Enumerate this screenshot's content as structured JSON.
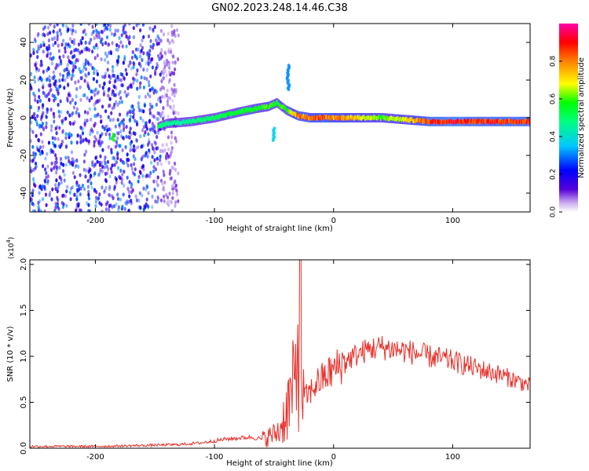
{
  "title": "GN02.2023.248.14.46.C38",
  "chart_data": [
    {
      "type": "heatmap",
      "xlabel": "Height of straight line (km)",
      "ylabel": "Frequency (Hz)",
      "xlim": [
        -255,
        165
      ],
      "ylim": [
        -50,
        50
      ],
      "xticks": [
        -200,
        -100,
        0,
        100
      ],
      "xtick_labels": [
        "-200",
        "-100",
        "0",
        "100"
      ],
      "yticks": [
        -40,
        -20,
        0,
        20,
        40
      ],
      "ytick_labels": [
        "-40",
        "-20",
        "0",
        "20",
        "40"
      ],
      "colorbar": {
        "label": "Normalized spectral amplitude",
        "range": [
          0,
          1
        ],
        "ticks": [
          0.0,
          0.2,
          0.4,
          0.6,
          0.8
        ],
        "tick_labels": [
          "0.0",
          "0.2",
          "0.4",
          "0.6",
          "0.8"
        ],
        "colormap": [
          "#ffffff",
          "#5500d8",
          "#0000ff",
          "#00c8ff",
          "#00ff80",
          "#00ff00",
          "#ffff00",
          "#ff8000",
          "#ff0000",
          "#ff00aa"
        ]
      },
      "signal_track": {
        "x": [
          -148,
          -140,
          -120,
          -100,
          -80,
          -65,
          -55,
          -48,
          -40,
          -30,
          -20,
          -10,
          0,
          20,
          40,
          60,
          80,
          100,
          120,
          140,
          165
        ],
        "freq": [
          -5,
          -3,
          -2,
          0,
          3,
          5,
          6,
          8,
          4,
          1,
          0,
          0,
          0,
          0,
          0,
          -1,
          -2,
          -2,
          -2,
          -2,
          -2
        ],
        "amplitude": [
          0.5,
          0.45,
          0.45,
          0.5,
          0.55,
          0.55,
          0.6,
          0.55,
          0.6,
          0.85,
          0.8,
          0.85,
          0.8,
          0.75,
          0.6,
          0.7,
          0.9,
          0.95,
          0.9,
          0.9,
          0.9
        ]
      },
      "noise_region": {
        "x_range": [
          -255,
          -145
        ],
        "amplitude": 0.25
      },
      "side_features": [
        {
          "x": -38,
          "freq_range": [
            15,
            28
          ],
          "amplitude": 0.3
        },
        {
          "x": -50,
          "freq_range": [
            -12,
            -5
          ],
          "amplitude": 0.35
        },
        {
          "x": -185,
          "freq_range": [
            -12,
            -8
          ],
          "amplitude": 0.55
        }
      ]
    },
    {
      "type": "line",
      "xlabel": "Height of straight line (km)",
      "ylabel": "SNR (10 * v/v)",
      "y_multiplier": "(x10",
      "y_multiplier_exp": "4",
      "y_multiplier_close": ")",
      "xlim": [
        -255,
        165
      ],
      "ylim": [
        0,
        2.05
      ],
      "xticks": [
        -200,
        -100,
        0,
        100
      ],
      "xtick_labels": [
        "-200",
        "-100",
        "0",
        "100"
      ],
      "yticks": [
        0.0,
        0.5,
        1.0,
        1.5,
        2.0
      ],
      "ytick_labels": [
        "0.0",
        "0.5",
        "1.0",
        "1.5",
        "2.0"
      ],
      "color": "#e8302a",
      "x": [
        -255,
        -200,
        -160,
        -130,
        -110,
        -90,
        -70,
        -60,
        -50,
        -45,
        -40,
        -36,
        -32,
        -30,
        -28,
        -26,
        -24,
        -20,
        -15,
        -10,
        -5,
        0,
        5,
        10,
        20,
        30,
        40,
        60,
        80,
        100,
        120,
        140,
        165
      ],
      "values": [
        0.02,
        0.02,
        0.03,
        0.04,
        0.06,
        0.1,
        0.12,
        0.1,
        0.15,
        0.2,
        0.4,
        0.55,
        0.7,
        1.2,
        2.05,
        0.5,
        0.55,
        0.6,
        0.7,
        0.75,
        0.8,
        0.85,
        0.9,
        0.95,
        1.02,
        1.08,
        1.1,
        1.06,
        1.0,
        0.95,
        0.87,
        0.8,
        0.68
      ]
    }
  ]
}
